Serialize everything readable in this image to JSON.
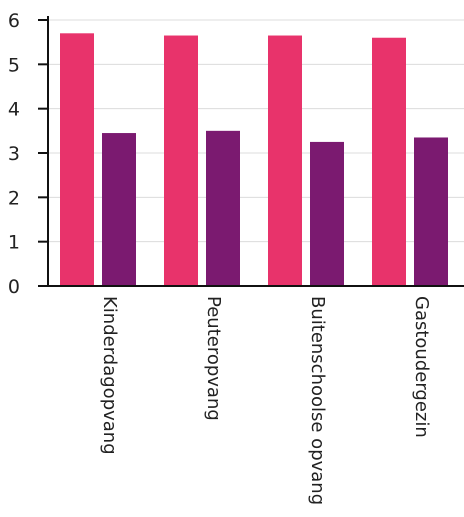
{
  "chart_data": {
    "type": "bar",
    "title": "",
    "xlabel": "",
    "ylabel": "",
    "categories": [
      "Kinderdagopvang",
      "Peuteropvang",
      "Buitenschoolse opvang",
      "Gastoudergezin"
    ],
    "series": [
      {
        "color": "#e8336b",
        "values": [
          5.7,
          5.65,
          5.65,
          5.6
        ]
      },
      {
        "color": "#7b1a70",
        "values": [
          3.45,
          3.5,
          3.25,
          3.35
        ]
      }
    ],
    "ylim": [
      0,
      6
    ],
    "yticks": [
      "0",
      "1",
      "2",
      "3",
      "4",
      "5",
      "6"
    ],
    "grid": true,
    "legend": "none"
  }
}
